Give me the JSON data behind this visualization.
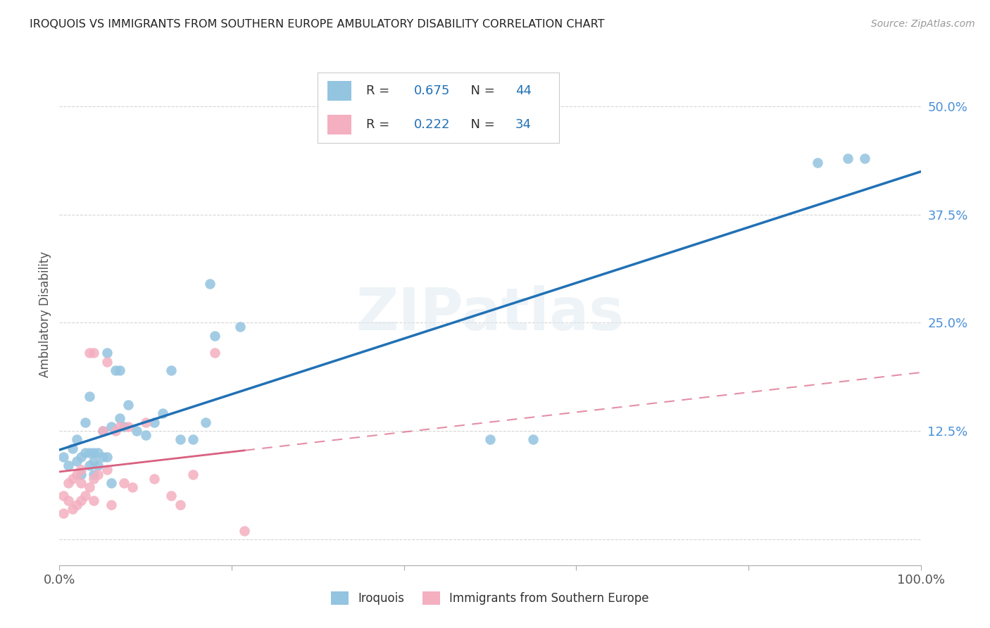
{
  "title": "IROQUOIS VS IMMIGRANTS FROM SOUTHERN EUROPE AMBULATORY DISABILITY CORRELATION CHART",
  "source": "Source: ZipAtlas.com",
  "ylabel": "Ambulatory Disability",
  "xlim": [
    0.0,
    1.0
  ],
  "ylim": [
    -0.03,
    0.55
  ],
  "xticks": [
    0.0,
    0.2,
    0.4,
    0.6,
    0.8,
    1.0
  ],
  "xticklabels": [
    "0.0%",
    "",
    "",
    "",
    "",
    "100.0%"
  ],
  "ytick_positions": [
    0.0,
    0.125,
    0.25,
    0.375,
    0.5
  ],
  "yticklabels": [
    "",
    "12.5%",
    "25.0%",
    "37.5%",
    "50.0%"
  ],
  "blue_R": "0.675",
  "blue_N": "44",
  "pink_R": "0.222",
  "pink_N": "34",
  "blue_color": "#93c4e0",
  "pink_color": "#f4afc0",
  "blue_line_color": "#2171b5",
  "pink_line_color": "#d96080",
  "background_color": "#ffffff",
  "grid_color": "#cccccc",
  "watermark": "ZIPatlas",
  "blue_x": [
    0.005,
    0.01,
    0.015,
    0.02,
    0.02,
    0.025,
    0.025,
    0.03,
    0.03,
    0.035,
    0.035,
    0.035,
    0.04,
    0.04,
    0.04,
    0.045,
    0.045,
    0.05,
    0.05,
    0.055,
    0.055,
    0.06,
    0.06,
    0.065,
    0.07,
    0.07,
    0.075,
    0.08,
    0.09,
    0.1,
    0.11,
    0.12,
    0.13,
    0.14,
    0.155,
    0.17,
    0.175,
    0.18,
    0.21,
    0.5,
    0.55,
    0.88,
    0.915,
    0.935
  ],
  "blue_y": [
    0.095,
    0.085,
    0.105,
    0.09,
    0.115,
    0.075,
    0.095,
    0.1,
    0.135,
    0.085,
    0.1,
    0.165,
    0.075,
    0.09,
    0.1,
    0.085,
    0.1,
    0.095,
    0.125,
    0.095,
    0.215,
    0.065,
    0.13,
    0.195,
    0.14,
    0.195,
    0.13,
    0.155,
    0.125,
    0.12,
    0.135,
    0.145,
    0.195,
    0.115,
    0.115,
    0.135,
    0.295,
    0.235,
    0.245,
    0.115,
    0.115,
    0.435,
    0.44,
    0.44
  ],
  "pink_x": [
    0.005,
    0.005,
    0.01,
    0.01,
    0.015,
    0.015,
    0.02,
    0.02,
    0.025,
    0.025,
    0.025,
    0.03,
    0.035,
    0.035,
    0.04,
    0.04,
    0.04,
    0.045,
    0.05,
    0.055,
    0.055,
    0.06,
    0.065,
    0.07,
    0.075,
    0.08,
    0.085,
    0.1,
    0.11,
    0.13,
    0.14,
    0.155,
    0.18,
    0.215
  ],
  "pink_y": [
    0.03,
    0.05,
    0.045,
    0.065,
    0.035,
    0.07,
    0.04,
    0.075,
    0.045,
    0.065,
    0.08,
    0.05,
    0.06,
    0.215,
    0.045,
    0.07,
    0.215,
    0.075,
    0.125,
    0.08,
    0.205,
    0.04,
    0.125,
    0.13,
    0.065,
    0.13,
    0.06,
    0.135,
    0.07,
    0.05,
    0.04,
    0.075,
    0.215,
    0.01
  ]
}
